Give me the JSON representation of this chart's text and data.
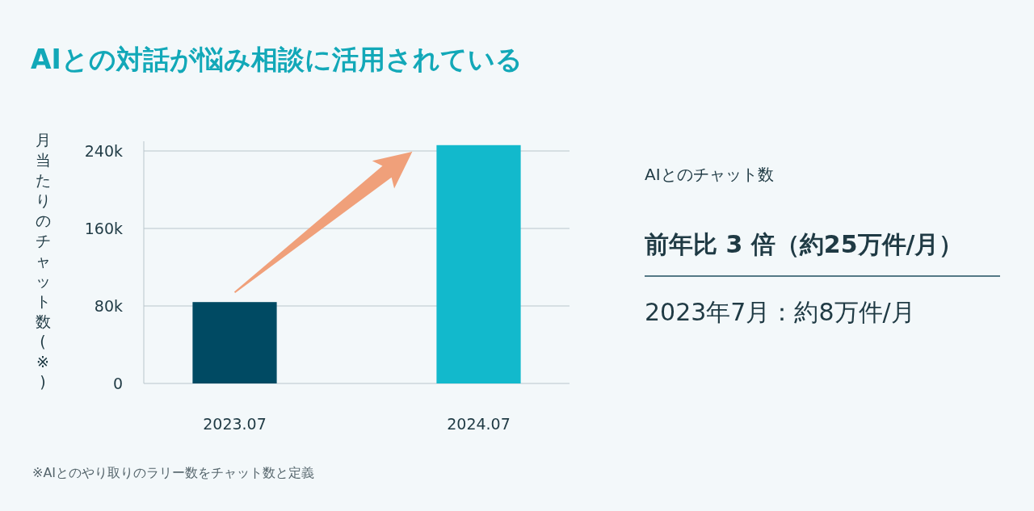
{
  "chart_data": {
    "type": "bar",
    "title": "AIとの対話が悩み相談に活用されている",
    "ylabel": "月当たりのチャット数(※)",
    "categories": [
      "2023.07",
      "2024.07"
    ],
    "values": [
      84000,
      246000
    ],
    "colors": [
      "#004a63",
      "#12b9cc"
    ],
    "ylim": [
      0,
      250000
    ],
    "yticks": [
      0,
      {
        "value": 80000,
        "label": "80k"
      },
      {
        "value": 160000,
        "label": "160k"
      },
      {
        "value": 240000,
        "label": "240k"
      }
    ],
    "grid": "y",
    "annotations": [
      "AIとのチャット数",
      "前年比 3 倍（約25万件/月）",
      "2023年7月：約8万件/月",
      "※AIとのやり取りのラリー数をチャット数と定義"
    ]
  }
}
